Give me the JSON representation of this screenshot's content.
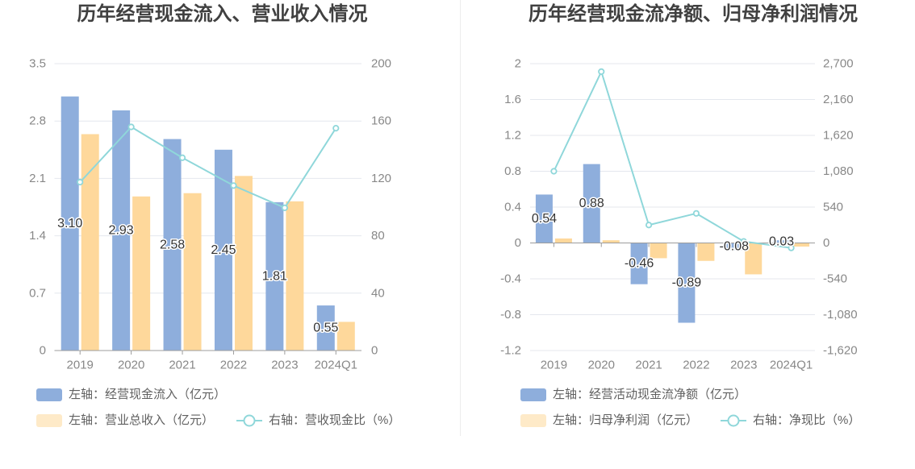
{
  "chart_data": [
    {
      "type": "bar",
      "title": "历年经营现金流入、营业收入情况",
      "categories": [
        "2019",
        "2020",
        "2021",
        "2022",
        "2023",
        "2024Q1"
      ],
      "y_left": {
        "ticks": [
          "0",
          "0.7",
          "1.4",
          "2.1",
          "2.8",
          "3.5"
        ],
        "range": [
          0,
          3.5
        ]
      },
      "y_right": {
        "ticks": [
          "0",
          "40",
          "80",
          "120",
          "160",
          "200"
        ],
        "range": [
          0,
          200
        ]
      },
      "grid": true,
      "legend_position": "bottom-left",
      "series": [
        {
          "name": "左轴：经营现金流入（亿元）",
          "type": "bar",
          "axis": "left",
          "color": "#8eaedc",
          "values": [
            3.1,
            2.93,
            2.58,
            2.45,
            1.81,
            0.55
          ],
          "labels": [
            "3.10",
            "2.93",
            "2.58",
            "2.45",
            "1.81",
            "0.55"
          ]
        },
        {
          "name": "左轴：营业总收入（亿元）",
          "type": "bar",
          "axis": "left",
          "color": "#fed89b",
          "values": [
            2.64,
            1.88,
            1.92,
            2.13,
            1.82,
            0.35
          ]
        },
        {
          "name": "右轴：营收现金比（%）",
          "type": "line",
          "axis": "right",
          "color": "#8fd7da",
          "values": [
            117.4,
            155.9,
            134.4,
            115.0,
            99.5,
            155.0
          ]
        }
      ]
    },
    {
      "type": "bar",
      "title": "历年经营现金流净额、归母净利润情况",
      "categories": [
        "2019",
        "2020",
        "2021",
        "2022",
        "2023",
        "2024Q1"
      ],
      "y_left": {
        "ticks": [
          "-1.2",
          "-0.8",
          "-0.4",
          "0",
          "0.4",
          "0.8",
          "1.2",
          "1.6",
          "2"
        ],
        "range": [
          -1.2,
          2
        ]
      },
      "y_right": {
        "ticks": [
          "-1,620",
          "-1,080",
          "-540",
          "0",
          "540",
          "1,080",
          "1,620",
          "2,160",
          "2,700"
        ],
        "range": [
          -1620,
          2700
        ]
      },
      "grid": true,
      "legend_position": "bottom-left",
      "series": [
        {
          "name": "左轴：经营活动现金流净额（亿元）",
          "type": "bar",
          "axis": "left",
          "color": "#8eaedc",
          "values": [
            0.54,
            0.88,
            -0.46,
            -0.89,
            -0.08,
            0.03
          ],
          "labels": [
            "0.54",
            "0.88",
            "-0.46",
            "-0.89",
            "-0.08",
            "0.03"
          ]
        },
        {
          "name": "左轴：归母净利润（亿元）",
          "type": "bar",
          "axis": "left",
          "color": "#fed89b",
          "values": [
            0.05,
            0.03,
            -0.17,
            -0.2,
            -0.35,
            -0.04
          ]
        },
        {
          "name": "右轴：净现比（%）",
          "type": "line",
          "axis": "right",
          "color": "#8fd7da",
          "values": [
            1080,
            2580,
            270,
            445,
            23,
            -75
          ]
        }
      ]
    }
  ]
}
